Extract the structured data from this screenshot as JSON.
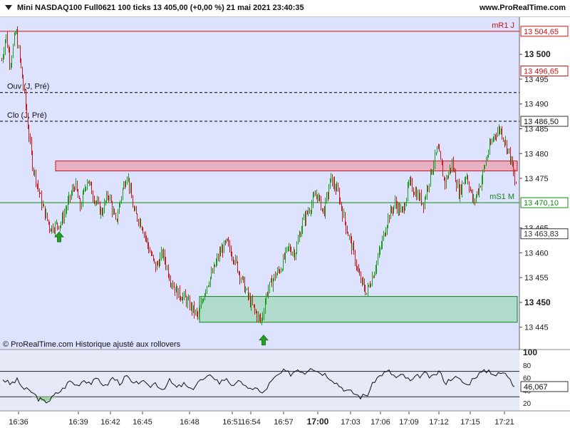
{
  "header": {
    "title": "Mini NASDAQ100 Full0621 100 ticks 13 405,00 (+0,00 %) 21 mai 2021 23:40:35",
    "site": "www.ProRealTime.com"
  },
  "main_chart": {
    "y_axis_labels": [
      "13 500",
      "13 495",
      "13 490",
      "13 485",
      "13 480",
      "13 475",
      "13 465",
      "13 460",
      "13 455",
      "13 450",
      "13 445"
    ],
    "bold_y_labels": [
      "13 500",
      "13 450"
    ],
    "levels": [
      {
        "name": "mR1 J",
        "label": "mR1 J",
        "value_text": "13 504,65",
        "value": 13504.65,
        "color": "#d01010",
        "style": "solid"
      },
      {
        "name": "Ouv",
        "label": "Ouv (J, Pré)",
        "value_text": "",
        "value": 13492.3,
        "color": "#000000",
        "style": "dashed"
      },
      {
        "name": "Clo",
        "label": "Clo (J, Pré)",
        "value_text": "13 486,50",
        "value": 13486.5,
        "color": "#000000",
        "style": "dashed"
      },
      {
        "name": "mS1 M",
        "label": "mS1 M",
        "value_text": "13 470,10",
        "value": 13470.1,
        "color": "#108a10",
        "style": "solid"
      }
    ],
    "price_tags": [
      {
        "text": "13 496,65",
        "value": 13496.65,
        "color": "#d01010"
      },
      {
        "text": "13 463,83",
        "value": 13463.83,
        "color": "#333333"
      }
    ],
    "zones": [
      {
        "type": "resistance",
        "from": 13476.5,
        "to": 13478.5,
        "color": "#e9a8b9",
        "border": "#d01010"
      },
      {
        "type": "support",
        "from": 13446.0,
        "to": 13451.2,
        "color": "#a8d8c2",
        "border": "#108a10"
      }
    ],
    "arrows": [
      {
        "direction": "up",
        "price": 13463.2
      },
      {
        "direction": "up",
        "price": 13442.4
      }
    ],
    "footer_note": "© ProRealTime.com Historique ajusté aux rollovers"
  },
  "chart_data": {
    "type": "candlestick",
    "title": "Mini NASDAQ100 Full0621 100 ticks",
    "ylim": [
      13440.5,
      13507.5
    ],
    "x_labels": [
      "16:36",
      "16:39",
      "16:42",
      "16:45",
      "16:48",
      "16:51",
      "16:54",
      "16:57",
      "17:00",
      "17:03",
      "17:06",
      "17:09",
      "17:12",
      "17:15",
      "17:21"
    ],
    "bold_x_label": "17:00",
    "close_path": [
      [
        0,
        13497
      ],
      [
        8,
        13504
      ],
      [
        14,
        13498
      ],
      [
        22,
        13505
      ],
      [
        32,
        13494
      ],
      [
        45,
        13478
      ],
      [
        58,
        13470
      ],
      [
        70,
        13465
      ],
      [
        85,
        13466
      ],
      [
        95,
        13470
      ],
      [
        105,
        13474
      ],
      [
        112,
        13469
      ],
      [
        122,
        13475
      ],
      [
        132,
        13471
      ],
      [
        142,
        13468
      ],
      [
        152,
        13472
      ],
      [
        162,
        13466
      ],
      [
        172,
        13473
      ],
      [
        178,
        13476
      ],
      [
        188,
        13468
      ],
      [
        198,
        13466
      ],
      [
        208,
        13461
      ],
      [
        218,
        13457
      ],
      [
        228,
        13460
      ],
      [
        238,
        13455
      ],
      [
        248,
        13452
      ],
      [
        258,
        13451
      ],
      [
        268,
        13449
      ],
      [
        278,
        13447
      ],
      [
        288,
        13453
      ],
      [
        298,
        13456
      ],
      [
        308,
        13460
      ],
      [
        318,
        13462
      ],
      [
        328,
        13459
      ],
      [
        338,
        13455
      ],
      [
        348,
        13451
      ],
      [
        358,
        13448
      ],
      [
        366,
        13446
      ],
      [
        374,
        13452
      ],
      [
        384,
        13455
      ],
      [
        394,
        13457
      ],
      [
        404,
        13461
      ],
      [
        414,
        13460
      ],
      [
        424,
        13466
      ],
      [
        434,
        13469
      ],
      [
        444,
        13472
      ],
      [
        454,
        13468
      ],
      [
        464,
        13475
      ],
      [
        474,
        13472
      ],
      [
        484,
        13466
      ],
      [
        494,
        13461
      ],
      [
        504,
        13455
      ],
      [
        514,
        13452
      ],
      [
        524,
        13456
      ],
      [
        534,
        13461
      ],
      [
        544,
        13467
      ],
      [
        554,
        13470
      ],
      [
        564,
        13468
      ],
      [
        574,
        13474
      ],
      [
        584,
        13472
      ],
      [
        594,
        13470
      ],
      [
        604,
        13476
      ],
      [
        614,
        13481
      ],
      [
        624,
        13474
      ],
      [
        634,
        13478
      ],
      [
        644,
        13472
      ],
      [
        654,
        13476
      ],
      [
        664,
        13470
      ],
      [
        674,
        13474
      ],
      [
        684,
        13480
      ],
      [
        694,
        13484
      ],
      [
        702,
        13485
      ],
      [
        712,
        13481
      ],
      [
        718,
        13478
      ],
      [
        722,
        13474
      ]
    ]
  },
  "oscillator": {
    "scale_labels": [
      "100",
      "80",
      "60",
      "40",
      "20"
    ],
    "bold_scale_label": "100",
    "upper_level": 70,
    "lower_level": 30,
    "current_value": 46.067,
    "current_value_text": "46,067",
    "path": [
      [
        4,
        58
      ],
      [
        14,
        50
      ],
      [
        24,
        56
      ],
      [
        34,
        42
      ],
      [
        44,
        38
      ],
      [
        54,
        27
      ],
      [
        62,
        22
      ],
      [
        70,
        25
      ],
      [
        78,
        34
      ],
      [
        88,
        42
      ],
      [
        98,
        55
      ],
      [
        108,
        48
      ],
      [
        118,
        57
      ],
      [
        128,
        52
      ],
      [
        138,
        58
      ],
      [
        148,
        46
      ],
      [
        158,
        60
      ],
      [
        168,
        52
      ],
      [
        178,
        62
      ],
      [
        188,
        48
      ],
      [
        198,
        56
      ],
      [
        208,
        45
      ],
      [
        218,
        52
      ],
      [
        228,
        42
      ],
      [
        238,
        55
      ],
      [
        248,
        44
      ],
      [
        258,
        50
      ],
      [
        268,
        40
      ],
      [
        278,
        54
      ],
      [
        288,
        58
      ],
      [
        298,
        64
      ],
      [
        308,
        52
      ],
      [
        318,
        60
      ],
      [
        328,
        45
      ],
      [
        338,
        56
      ],
      [
        348,
        40
      ],
      [
        358,
        46
      ],
      [
        368,
        34
      ],
      [
        378,
        50
      ],
      [
        388,
        62
      ],
      [
        398,
        70
      ],
      [
        408,
        66
      ],
      [
        418,
        74
      ],
      [
        428,
        68
      ],
      [
        436,
        78
      ],
      [
        446,
        70
      ],
      [
        456,
        66
      ],
      [
        466,
        58
      ],
      [
        476,
        48
      ],
      [
        486,
        40
      ],
      [
        496,
        36
      ],
      [
        506,
        30
      ],
      [
        516,
        34
      ],
      [
        526,
        56
      ],
      [
        536,
        66
      ],
      [
        546,
        70
      ],
      [
        556,
        60
      ],
      [
        566,
        64
      ],
      [
        576,
        54
      ],
      [
        586,
        62
      ],
      [
        596,
        66
      ],
      [
        606,
        60
      ],
      [
        616,
        70
      ],
      [
        626,
        52
      ],
      [
        636,
        62
      ],
      [
        646,
        56
      ],
      [
        656,
        48
      ],
      [
        666,
        62
      ],
      [
        676,
        68
      ],
      [
        686,
        72
      ],
      [
        696,
        64
      ],
      [
        706,
        68
      ],
      [
        716,
        60
      ],
      [
        722,
        46
      ]
    ]
  },
  "colors": {
    "chart_bg": "#dde2ff",
    "up_candle": "#1a9a1a",
    "down_candle": "#c81818",
    "oscillator_bg": "#e6e9f7"
  }
}
